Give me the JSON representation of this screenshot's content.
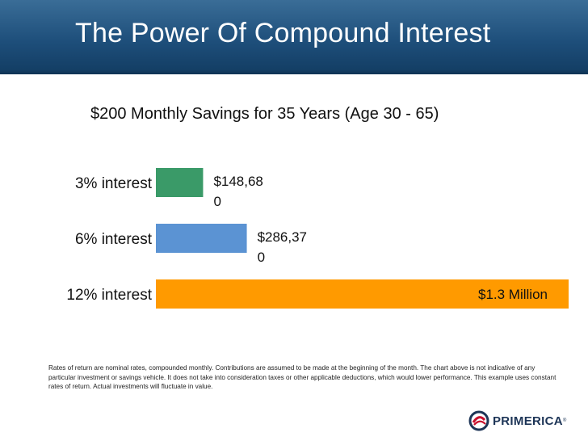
{
  "slide": {
    "title": "The Power Of Compound Interest",
    "subtitle": "$200 Monthly Savings for 35 Years (Age 30 - 65)",
    "disclaimer": "Rates of return are nominal rates, compounded monthly. Contributions are assumed to be made at the beginning of the month. The chart above is not indicative of any particular investment or savings vehicle. It does not take into consideration taxes or other applicable deductions, which would lower performance. This example uses constant rates of return. Actual investments will fluctuate in value."
  },
  "logo": {
    "text": "PRIMERICA",
    "tm": "®"
  },
  "colors": {
    "header": "#1e4f7b",
    "green": "#3a9a68",
    "blue": "#5b93d3",
    "orange": "#ff9a00"
  },
  "chart_data": {
    "type": "bar",
    "orientation": "horizontal",
    "categories": [
      "3% interest",
      "6% interest",
      "12% interest"
    ],
    "values": [
      148680,
      286370,
      1300000
    ],
    "value_labels": [
      [
        "$148,68",
        "0"
      ],
      [
        "$286,37",
        "0"
      ],
      [
        "$1.3 Million"
      ]
    ],
    "colors": [
      "#3a9a68",
      "#5b93d3",
      "#ff9a00"
    ],
    "title": "$200 Monthly Savings for 35 Years (Age 30 - 65)",
    "xlabel": "",
    "ylabel": "",
    "grid": false,
    "legend": "none"
  }
}
